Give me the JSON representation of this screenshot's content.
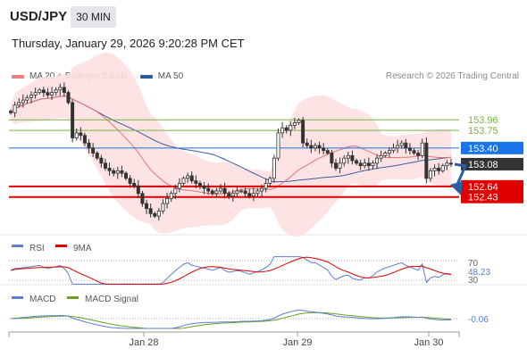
{
  "header": {
    "symbol": "USD/JPY",
    "timeframe": "30 MIN",
    "datetime": "Thursday, January 29, 2026 9:20:28 PM CET",
    "credit": "Research © 2026 Trading Central"
  },
  "legend": {
    "items": [
      {
        "label": "MA 20 + Bollinger Bands",
        "color": "#f08080"
      },
      {
        "label": "MA 50",
        "color": "#2c5aa0"
      }
    ]
  },
  "chart_data": [
    {
      "type": "candlestick",
      "title": "",
      "x_tick_labels": [
        "Jan 28",
        "Jan 29",
        "Jan 30"
      ],
      "price_levels": [
        {
          "value": 153.96,
          "label": "153.96",
          "color": "#7cb342",
          "kind": "resistance"
        },
        {
          "value": 153.75,
          "label": "153.75",
          "color": "#7cb342",
          "kind": "resistance"
        },
        {
          "value": 153.4,
          "label": "153.40",
          "color": "#1a73e8",
          "kind": "pivot"
        },
        {
          "value": 153.08,
          "label": "153.08",
          "color": "#333333",
          "kind": "last-price"
        },
        {
          "value": 152.64,
          "label": "152.64",
          "color": "#e00000",
          "kind": "support"
        },
        {
          "value": 152.43,
          "label": "152.43",
          "color": "#e00000",
          "kind": "support"
        }
      ],
      "ylim": [
        151.7,
        154.6
      ],
      "closes": [
        154.1,
        154.25,
        154.3,
        154.35,
        154.4,
        154.45,
        154.5,
        154.55,
        154.5,
        154.45,
        154.5,
        154.55,
        154.6,
        154.5,
        154.3,
        153.6,
        153.7,
        153.65,
        153.5,
        153.4,
        153.3,
        153.2,
        153.1,
        153.0,
        152.95,
        152.9,
        152.95,
        152.9,
        152.8,
        152.7,
        152.65,
        152.5,
        152.3,
        152.2,
        152.1,
        152.05,
        152.15,
        152.3,
        152.4,
        152.5,
        152.6,
        152.7,
        152.8,
        152.85,
        152.75,
        152.7,
        152.65,
        152.6,
        152.55,
        152.5,
        152.55,
        152.6,
        152.5,
        152.45,
        152.5,
        152.55,
        152.55,
        152.5,
        152.45,
        152.5,
        152.55,
        152.6,
        152.7,
        152.8,
        153.2,
        153.7,
        153.8,
        153.75,
        153.85,
        153.9,
        153.95,
        153.5,
        153.45,
        153.4,
        153.45,
        153.4,
        153.35,
        153.3,
        153.1,
        153.0,
        153.1,
        153.2,
        153.25,
        153.15,
        153.1,
        153.05,
        153.1,
        153.05,
        153.1,
        153.2,
        153.25,
        153.3,
        153.35,
        153.4,
        153.45,
        153.5,
        153.4,
        153.35,
        153.3,
        153.25,
        153.5,
        152.8,
        152.95,
        153.0,
        152.95,
        153.05,
        153.1,
        153.08
      ],
      "rsi_panel": {
        "label": "RSI",
        "ma_label": "9MA",
        "value_label": "48.23",
        "level_labels": [
          "70",
          "30"
        ]
      },
      "macd_panel": {
        "label": "MACD",
        "signal_label": "MACD Signal",
        "value_label": "-0.06"
      }
    }
  ]
}
